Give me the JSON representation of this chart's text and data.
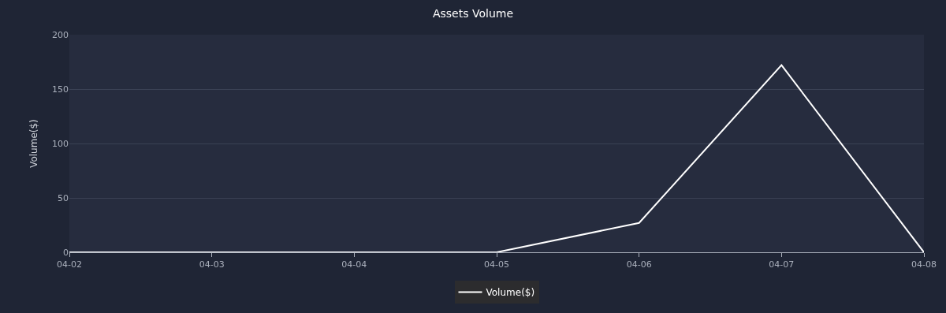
{
  "chart_data": {
    "type": "line",
    "title": "Assets Volume",
    "ylabel": "Volume($)",
    "categories": [
      "04-02",
      "04-03",
      "04-04",
      "04-05",
      "04-06",
      "04-07",
      "04-08"
    ],
    "series": [
      {
        "name": "Volume($)",
        "color": "#ffffff",
        "values": [
          0,
          0,
          0,
          0,
          27,
          172,
          0
        ]
      }
    ],
    "ylim": [
      0,
      200
    ],
    "yticks": [
      0,
      50,
      100,
      150,
      200
    ],
    "grid": "y",
    "legend": "bottom",
    "marker": "none",
    "line_style": "solid"
  }
}
